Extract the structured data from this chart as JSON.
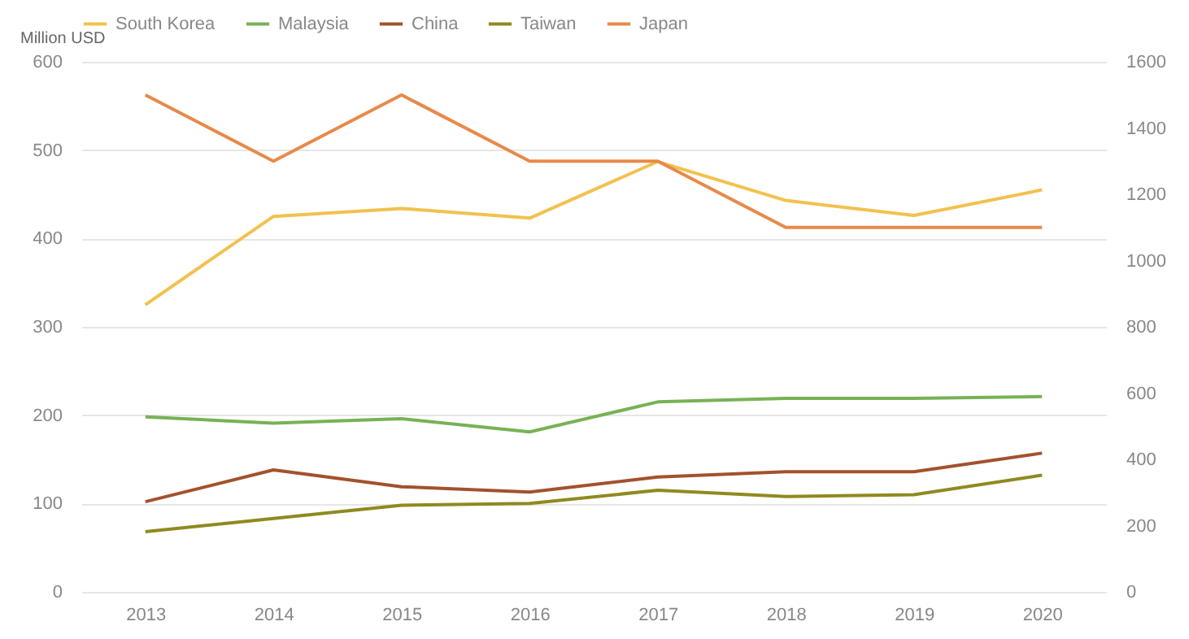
{
  "chart_data": {
    "type": "line",
    "ylabel": "Million USD",
    "categories": [
      "2013",
      "2014",
      "2015",
      "2016",
      "2017",
      "2018",
      "2019",
      "2020"
    ],
    "series": [
      {
        "name": "South Korea",
        "color": "#f2c14e",
        "values": [
          325,
          425,
          434,
          423,
          487,
          443,
          426,
          455
        ]
      },
      {
        "name": "Malaysia",
        "color": "#77b255",
        "values": [
          198,
          191,
          196,
          181,
          215,
          219,
          219,
          221
        ]
      },
      {
        "name": "China",
        "color": "#a2522d",
        "values": [
          102,
          138,
          119,
          113,
          130,
          136,
          136,
          157
        ]
      },
      {
        "name": "Taiwan",
        "color": "#8f8a1f",
        "values": [
          68,
          83,
          98,
          100,
          115,
          108,
          110,
          132
        ]
      },
      {
        "name": "Japan",
        "color": "#e8894a",
        "axis": "y2",
        "values": [
          1500,
          1300,
          1500,
          1300,
          1300,
          1100,
          1100,
          1100
        ]
      }
    ],
    "ylim": [
      0,
      600
    ],
    "yticks": [
      0,
      100,
      200,
      300,
      400,
      500,
      600
    ],
    "y2lim": [
      0,
      1600
    ],
    "y2ticks": [
      0,
      200,
      400,
      600,
      800,
      1000,
      1200,
      1400,
      1600
    ],
    "grid": "y",
    "legend": "top",
    "line_style": "solid",
    "marker": "none"
  }
}
